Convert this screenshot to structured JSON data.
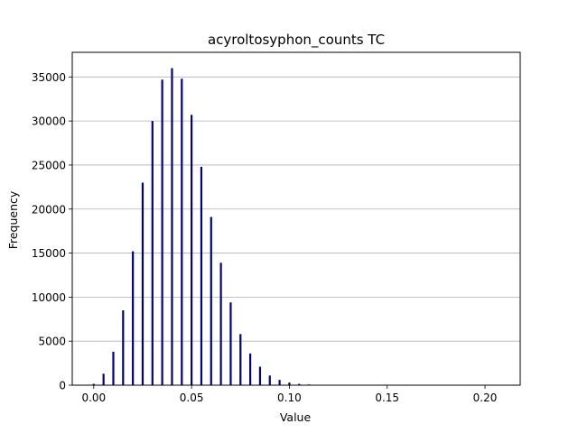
{
  "chart_data": {
    "type": "bar",
    "title": "acyroltosyphon_counts TC",
    "xlabel": "Value",
    "ylabel": "Frequency",
    "xlim": [
      -0.011,
      0.218
    ],
    "ylim": [
      0,
      37800
    ],
    "xticks": [
      0.0,
      0.05,
      0.1,
      0.15,
      0.2
    ],
    "xtick_labels": [
      "0.00",
      "0.05",
      "0.10",
      "0.15",
      "0.20"
    ],
    "yticks": [
      0,
      5000,
      10000,
      15000,
      20000,
      25000,
      30000,
      35000
    ],
    "ytick_labels": [
      "0",
      "5000",
      "10000",
      "15000",
      "20000",
      "25000",
      "30000",
      "35000"
    ],
    "grid": "horizontal",
    "bar_color": "#00008b",
    "x": [
      0.0,
      0.005,
      0.01,
      0.015,
      0.02,
      0.025,
      0.03,
      0.035,
      0.04,
      0.045,
      0.05,
      0.055,
      0.06,
      0.065,
      0.07,
      0.075,
      0.08,
      0.085,
      0.09,
      0.095,
      0.1,
      0.105,
      0.11
    ],
    "values": [
      150,
      1300,
      3800,
      8500,
      15200,
      23000,
      30000,
      34700,
      36000,
      34800,
      30700,
      24800,
      19100,
      13900,
      9400,
      5800,
      3600,
      2100,
      1100,
      600,
      300,
      150,
      80
    ]
  }
}
